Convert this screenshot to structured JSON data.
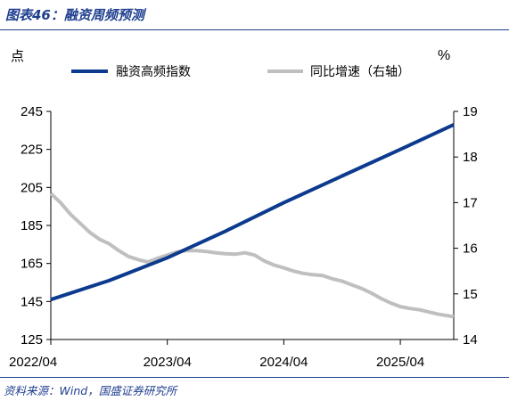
{
  "figure_title": "图表46：融资周频预测",
  "source_note": "资料来源：Wind，国盛证券研究所",
  "colors": {
    "title": "#1f3f8f",
    "series_primary": "#0b3a8e",
    "series_secondary": "#bfbfbf",
    "rule": "#1f3f8f"
  },
  "chart_data": {
    "type": "line",
    "left_unit": "点",
    "right_unit": "%",
    "grid": false,
    "legend_position": "top",
    "x_ticks": [
      "2022/04",
      "2023/04",
      "2024/04",
      "2025/04"
    ],
    "x_range": [
      0,
      41.5
    ],
    "y_left": {
      "min": 125,
      "max": 245,
      "ticks": [
        125,
        145,
        165,
        185,
        205,
        225,
        245
      ]
    },
    "y_right": {
      "min": 14,
      "max": 19,
      "ticks": [
        14,
        15,
        16,
        17,
        18,
        19
      ]
    },
    "series": [
      {
        "name": "融资高频指数",
        "axis": "left",
        "color": "#0b3a8e",
        "x": [
          0,
          6,
          12,
          18,
          24,
          30,
          36,
          41.5
        ],
        "values": [
          146,
          156,
          168,
          182,
          197,
          211,
          225,
          238
        ]
      },
      {
        "name": "同比增速（右轴）",
        "axis": "right",
        "color": "#bfbfbf",
        "x": [
          0,
          1,
          2,
          3,
          4,
          5,
          6,
          7,
          8,
          9,
          10,
          11,
          12,
          13,
          14,
          15,
          16,
          17,
          18,
          19,
          20,
          21,
          22,
          23,
          24,
          25,
          26,
          27,
          28,
          29,
          30,
          31,
          32,
          33,
          34,
          35,
          36,
          37,
          38,
          39,
          40,
          41.5
        ],
        "values": [
          17.2,
          17.0,
          16.75,
          16.55,
          16.35,
          16.2,
          16.1,
          15.95,
          15.82,
          15.75,
          15.7,
          15.78,
          15.85,
          15.92,
          15.95,
          15.95,
          15.93,
          15.9,
          15.88,
          15.87,
          15.9,
          15.85,
          15.72,
          15.63,
          15.57,
          15.5,
          15.45,
          15.42,
          15.4,
          15.33,
          15.28,
          15.2,
          15.12,
          15.02,
          14.9,
          14.8,
          14.72,
          14.68,
          14.65,
          14.6,
          14.55,
          14.5
        ]
      }
    ]
  }
}
